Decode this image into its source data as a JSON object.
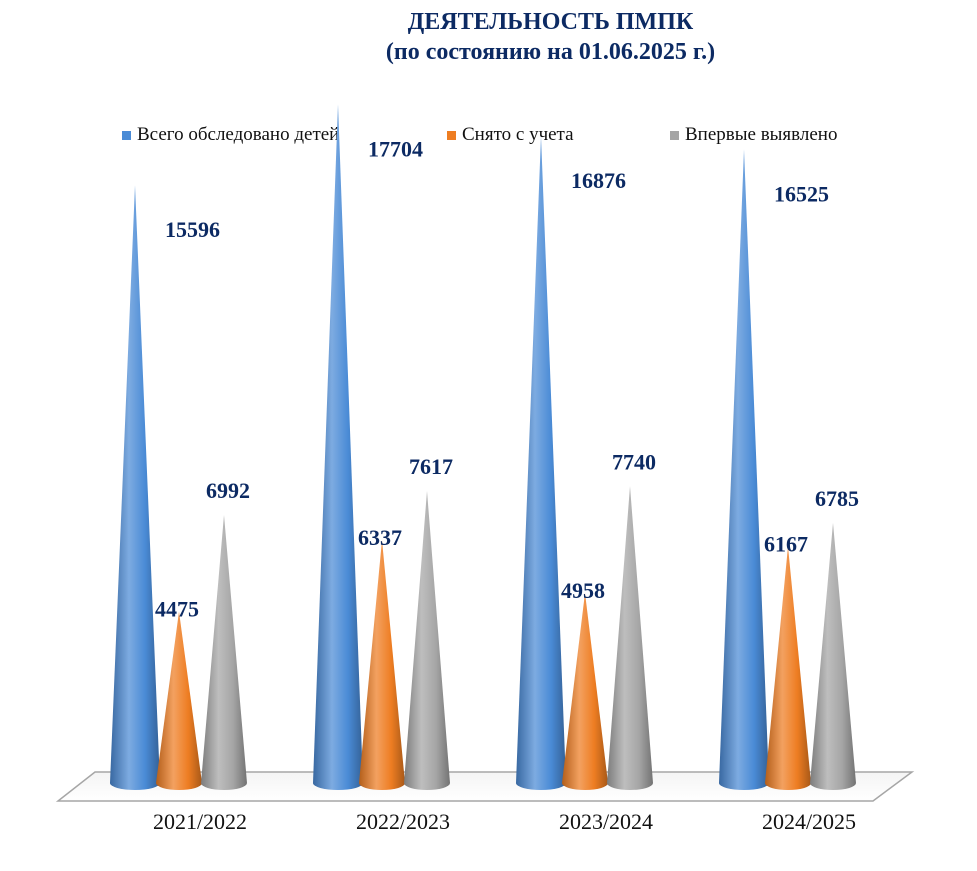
{
  "title_line1": "ДЕЯТЕЛЬНОСТЬ ПМПК",
  "title_line2": "(по состоянию на 01.06.2025 г.)",
  "chart_data": {
    "type": "bar",
    "shape": "3d-cone",
    "categories": [
      "2021/2022",
      "2022/2023",
      "2023/2024",
      "2024/2025"
    ],
    "series": [
      {
        "name": "Всего обследовано детей",
        "color": "#4a8bd6",
        "values": [
          15596,
          17704,
          16876,
          16525
        ]
      },
      {
        "name": "Снято с учета",
        "color": "#ee7d22",
        "values": [
          4475,
          6337,
          4958,
          6167
        ]
      },
      {
        "name": "Впервые выявлено",
        "color": "#a5a5a5",
        "values": [
          6992,
          7617,
          7740,
          6785
        ]
      }
    ],
    "legend_position": "top",
    "grid": false,
    "data_labels": true
  }
}
